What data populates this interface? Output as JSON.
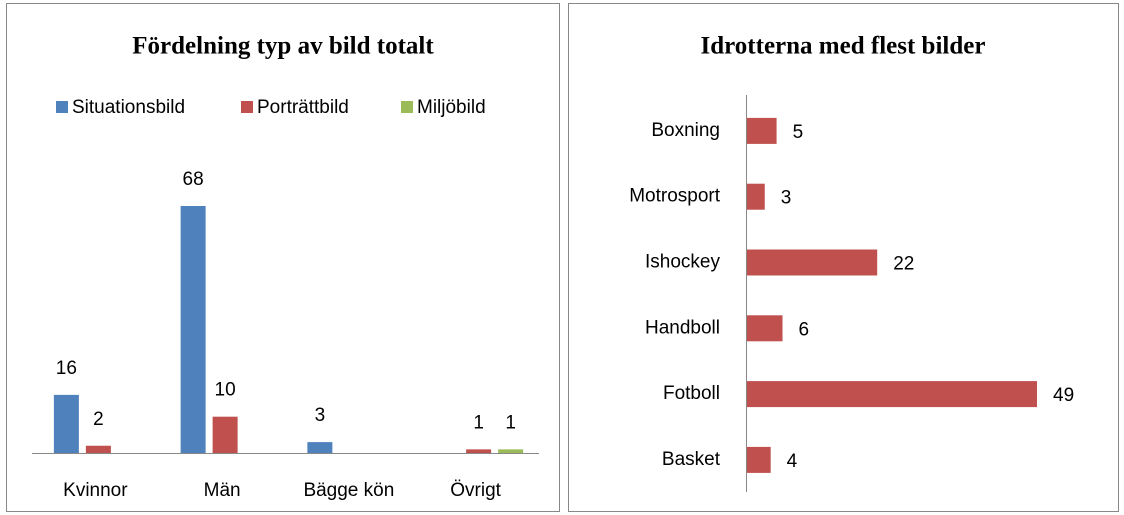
{
  "chart_data": [
    {
      "type": "bar",
      "title": "Fördelning typ av bild totalt",
      "categories": [
        "Kvinnor",
        "Män",
        "Bägge kön",
        "Övrigt"
      ],
      "series": [
        {
          "name": "Situationsbild",
          "color": "#4f81bd",
          "values": [
            16,
            68,
            3,
            null
          ]
        },
        {
          "name": "Porträttbild",
          "color": "#c0504d",
          "values": [
            2,
            10,
            null,
            1
          ]
        },
        {
          "name": "Miljöbild",
          "color": "#9bbb59",
          "values": [
            null,
            null,
            null,
            1
          ]
        }
      ],
      "legend": "top"
    },
    {
      "type": "barh",
      "title": "Idrotterna med flest bilder",
      "categories": [
        "Boxning",
        "Motrosport",
        "Ishockey",
        "Handboll",
        "Fotboll",
        "Basket"
      ],
      "values": [
        5,
        3,
        22,
        6,
        49,
        4
      ],
      "color": "#c0504d"
    }
  ]
}
